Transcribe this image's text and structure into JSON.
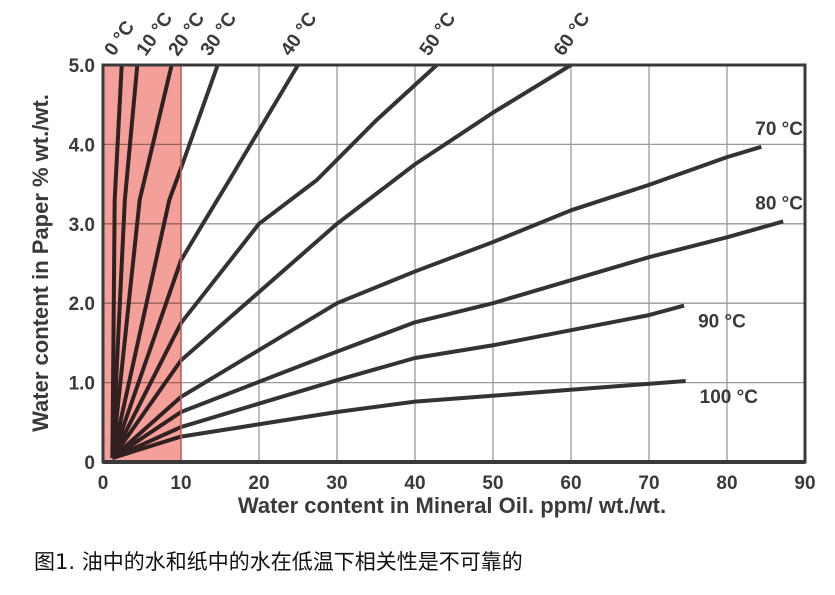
{
  "chart_data": {
    "type": "line",
    "title": "",
    "xlabel": "Water content in Mineral Oil. ppm/ wt./wt.",
    "ylabel": "Water content in Paper % wt./wt.",
    "xlim": [
      0,
      90
    ],
    "ylim": [
      0,
      5
    ],
    "x_ticks": [
      "0",
      "10",
      "20",
      "30",
      "40",
      "50",
      "60",
      "70",
      "80",
      "90"
    ],
    "y_ticks": [
      "0",
      "1.0",
      "2.0",
      "3.0",
      "4.0",
      "5.0"
    ],
    "grid": true,
    "highlight_region": {
      "x_from": 0,
      "x_to": 10,
      "color": "#f4a09a"
    },
    "line_color": "#333333",
    "series": [
      {
        "name": "0 °C",
        "points": [
          [
            1.2,
            0.05
          ],
          [
            1.5,
            3.3
          ],
          [
            2.4,
            5
          ]
        ]
      },
      {
        "name": "10 °C",
        "points": [
          [
            1.2,
            0.05
          ],
          [
            2.8,
            3.3
          ],
          [
            4.4,
            5
          ]
        ]
      },
      {
        "name": "20 °C",
        "points": [
          [
            1.2,
            0.05
          ],
          [
            4.7,
            3.3
          ],
          [
            8.8,
            5
          ]
        ]
      },
      {
        "name": "30 °C",
        "points": [
          [
            1.2,
            0.05
          ],
          [
            8.5,
            3.3
          ],
          [
            10,
            3.7
          ],
          [
            14.7,
            5
          ]
        ]
      },
      {
        "name": "40 °C",
        "points": [
          [
            1.2,
            0.05
          ],
          [
            10,
            2.54
          ],
          [
            12.8,
            3.0
          ],
          [
            16.2,
            3.55
          ],
          [
            25,
            5
          ]
        ]
      },
      {
        "name": "50 °C",
        "points": [
          [
            1.2,
            0.05
          ],
          [
            10,
            1.75
          ],
          [
            20,
            3.0
          ],
          [
            27.4,
            3.55
          ],
          [
            35,
            4.3
          ],
          [
            42.8,
            5
          ]
        ]
      },
      {
        "name": "60 °C",
        "points": [
          [
            1.2,
            0.05
          ],
          [
            10,
            1.28
          ],
          [
            30,
            3.0
          ],
          [
            40,
            3.75
          ],
          [
            50,
            4.4
          ],
          [
            60,
            5
          ]
        ]
      },
      {
        "name": "70 °C",
        "points": [
          [
            1.2,
            0.05
          ],
          [
            10,
            0.82
          ],
          [
            30,
            2.0
          ],
          [
            40,
            2.4
          ],
          [
            50,
            2.77
          ],
          [
            60,
            3.17
          ],
          [
            70,
            3.49
          ],
          [
            80,
            3.84
          ],
          [
            84.4,
            3.97
          ]
        ]
      },
      {
        "name": "80 °C",
        "points": [
          [
            1.2,
            0.05
          ],
          [
            10,
            0.63
          ],
          [
            30,
            1.39
          ],
          [
            40,
            1.76
          ],
          [
            50,
            2.0
          ],
          [
            60,
            2.29
          ],
          [
            70,
            2.58
          ],
          [
            80,
            2.83
          ],
          [
            87.2,
            3.03
          ]
        ]
      },
      {
        "name": "90 °C",
        "points": [
          [
            1.2,
            0.05
          ],
          [
            10,
            0.44
          ],
          [
            30,
            1.03
          ],
          [
            40,
            1.31
          ],
          [
            50,
            1.47
          ],
          [
            60,
            1.66
          ],
          [
            70,
            1.85
          ],
          [
            74.5,
            1.97
          ]
        ]
      },
      {
        "name": "100 °C",
        "points": [
          [
            1.2,
            0.05
          ],
          [
            10,
            0.32
          ],
          [
            30,
            0.63
          ],
          [
            40,
            0.76
          ],
          [
            74.7,
            1.02
          ]
        ]
      }
    ]
  },
  "caption": "图1. 油中的水和纸中的水在低温下相关性是不可靠的"
}
